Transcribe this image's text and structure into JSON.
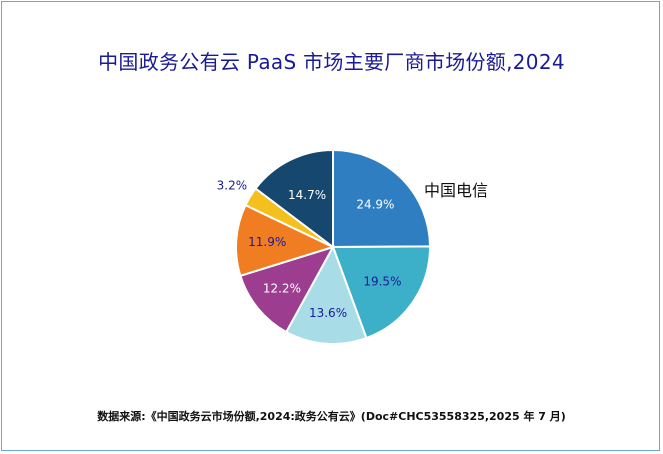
{
  "chart_data": {
    "type": "pie",
    "title": "中国政务公有云 PaaS 市场主要厂商市场份额,2024",
    "source": "数据来源:《中国政务云市场份额,2024:政务公有云》(Doc#CHC53558325,2025 年 7 月)",
    "slices": [
      {
        "label": "中国电信",
        "value": 24.9,
        "text": "24.9%",
        "color": "#2e7ec1",
        "text_color": "#ffffff"
      },
      {
        "label": "",
        "value": 19.5,
        "text": "19.5%",
        "color": "#3cb0c9",
        "text_color": "#1a1a96"
      },
      {
        "label": "",
        "value": 13.6,
        "text": "13.6%",
        "color": "#a8dde8",
        "text_color": "#1a1a96"
      },
      {
        "label": "",
        "value": 12.2,
        "text": "12.2%",
        "color": "#9c3d8f",
        "text_color": "#ffffff"
      },
      {
        "label": "",
        "value": 11.9,
        "text": "11.9%",
        "color": "#f07d21",
        "text_color": "#1a1a96"
      },
      {
        "label": "",
        "value": 3.2,
        "text": "3.2%",
        "color": "#f4c01e",
        "text_color": "#1a1a96"
      },
      {
        "label": "",
        "value": 14.7,
        "text": "14.7%",
        "color": "#16476e",
        "text_color": "#ffffff"
      }
    ],
    "legend": "none"
  }
}
